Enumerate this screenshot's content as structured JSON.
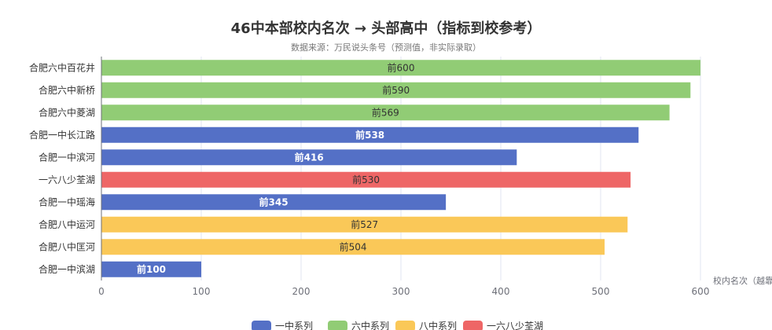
{
  "chart_data": {
    "type": "bar",
    "orientation": "horizontal",
    "title": "46中本部校内名次 → 头部高中（指标到校参考）",
    "subtitle": "数据来源：万民说头条号（预测值，非实际录取）",
    "xlabel": "校内名次（越靠",
    "ylabel": "",
    "xlim": [
      0,
      600
    ],
    "xticks": [
      0,
      100,
      200,
      300,
      400,
      500,
      600
    ],
    "grid": true,
    "legend_position": "bottom",
    "categories": [
      "合肥六中百花井",
      "合肥六中新桥",
      "合肥六中菱湖",
      "合肥一中长江路",
      "合肥一中滨河",
      "一六八少荃湖",
      "合肥一中瑶海",
      "合肥八中运河",
      "合肥八中匡河",
      "合肥一中滨湖"
    ],
    "values": [
      600,
      590,
      569,
      538,
      416,
      530,
      345,
      527,
      504,
      100
    ],
    "data_labels": [
      "前600",
      "前590",
      "前569",
      "前538",
      "前416",
      "前530",
      "前345",
      "前527",
      "前504",
      "前100"
    ],
    "bar_series": [
      "六中系列",
      "六中系列",
      "六中系列",
      "一中系列",
      "一中系列",
      "一六八少荃湖",
      "一中系列",
      "八中系列",
      "八中系列",
      "一中系列"
    ],
    "series": [
      {
        "name": "一中系列",
        "color": "#5470c6",
        "label_color": "#ffffff",
        "bold": true
      },
      {
        "name": "六中系列",
        "color": "#91cc75",
        "label_color": "#333333",
        "bold": false
      },
      {
        "name": "八中系列",
        "color": "#fac858",
        "label_color": "#333333",
        "bold": false
      },
      {
        "name": "一六八少荃湖",
        "color": "#ee6666",
        "label_color": "#333333",
        "bold": false
      }
    ]
  }
}
